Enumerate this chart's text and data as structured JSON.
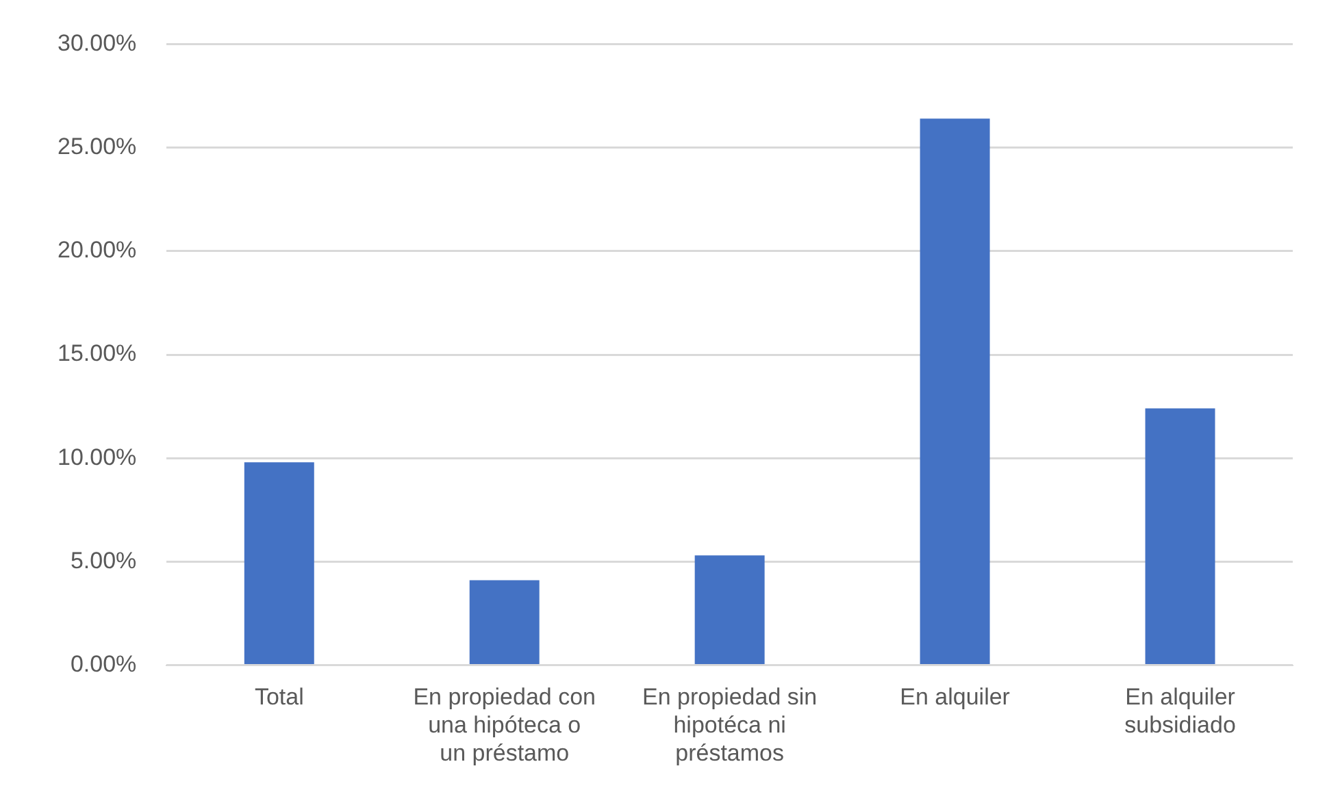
{
  "chart_data": {
    "type": "bar",
    "categories": [
      "Total",
      "En propiedad con una hipóteca o un préstamo",
      "En propiedad sin hipotéca ni préstamos",
      "En alquiler",
      "En alquiler subsidiado"
    ],
    "values": [
      9.8,
      4.1,
      5.3,
      26.4,
      12.4
    ],
    "color": "#4472c4",
    "ylim": [
      0,
      30
    ],
    "yticks": [
      {
        "value": 0,
        "label": "0.00%"
      },
      {
        "value": 5,
        "label": "5.00%"
      },
      {
        "value": 10,
        "label": "10.00%"
      },
      {
        "value": 15,
        "label": "15.00%"
      },
      {
        "value": 20,
        "label": "20.00%"
      },
      {
        "value": 25,
        "label": "25.00%"
      },
      {
        "value": 30,
        "label": "30.00%"
      }
    ],
    "grid": "y",
    "legend": false
  }
}
